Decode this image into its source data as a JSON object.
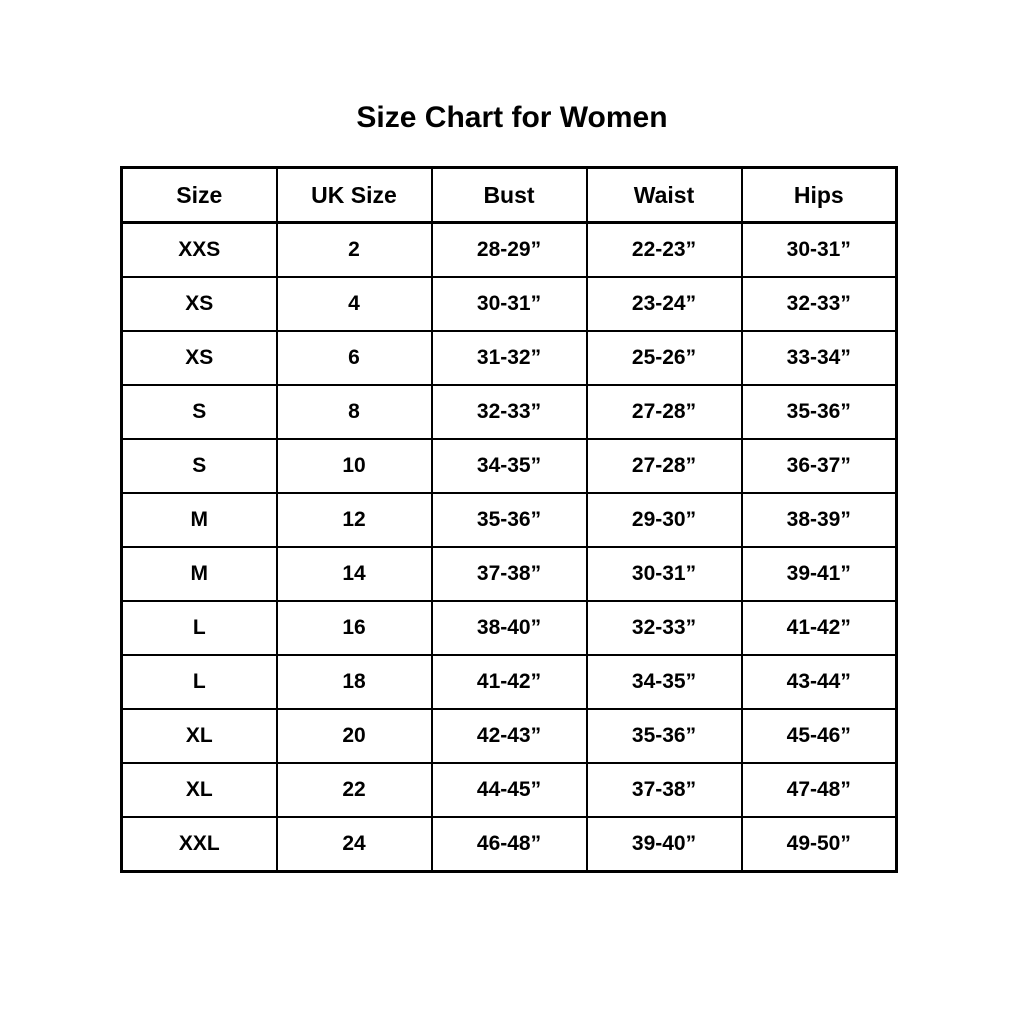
{
  "page": {
    "title": "Size Chart for Women"
  },
  "colors": {
    "background": "#ffffff",
    "border": "#000000",
    "text": "#000000"
  },
  "chart_data": {
    "type": "table",
    "title": "Size Chart for Women",
    "columns": [
      "Size",
      "UK Size",
      "Bust",
      "Waist",
      "Hips"
    ],
    "rows": [
      [
        "XXS",
        "2",
        "28-29”",
        "22-23”",
        "30-31”"
      ],
      [
        "XS",
        "4",
        "30-31”",
        "23-24”",
        "32-33”"
      ],
      [
        "XS",
        "6",
        "31-32”",
        "25-26”",
        "33-34”"
      ],
      [
        "S",
        "8",
        "32-33”",
        "27-28”",
        "35-36”"
      ],
      [
        "S",
        "10",
        "34-35”",
        "27-28”",
        "36-37”"
      ],
      [
        "M",
        "12",
        "35-36”",
        "29-30”",
        "38-39”"
      ],
      [
        "M",
        "14",
        "37-38”",
        "30-31”",
        "39-41”"
      ],
      [
        "L",
        "16",
        "38-40”",
        "32-33”",
        "41-42”"
      ],
      [
        "L",
        "18",
        "41-42”",
        "34-35”",
        "43-44”"
      ],
      [
        "XL",
        "20",
        "42-43”",
        "35-36”",
        "45-46”"
      ],
      [
        "XL",
        "22",
        "44-45”",
        "37-38”",
        "47-48”"
      ],
      [
        "XXL",
        "24",
        "46-48”",
        "39-40”",
        "49-50”"
      ]
    ]
  }
}
